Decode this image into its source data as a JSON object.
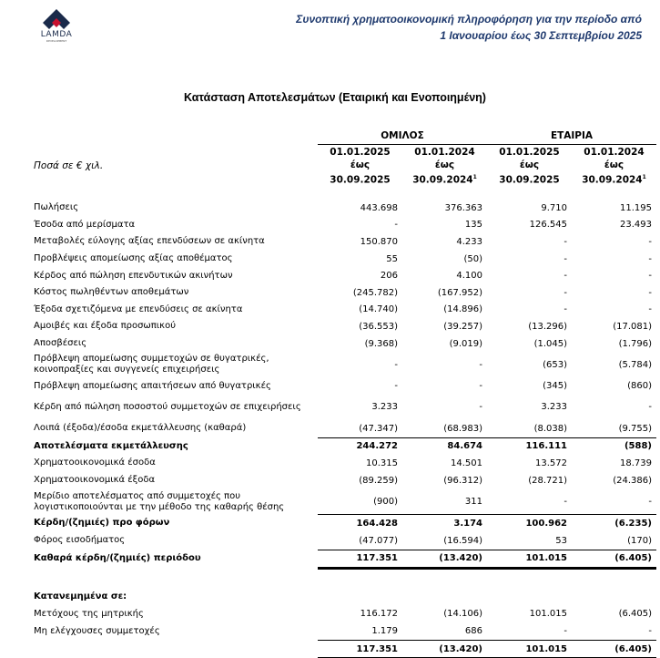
{
  "logo": {
    "name": "LAMDA",
    "sub": "DEVELOPMENT"
  },
  "header": {
    "line1": "Συνοπτική χρηματοοικονομική πληροφόρηση για την περίοδο από",
    "line2": "1 Ιανουαρίου έως 30 Σεπτεμβρίου 2025"
  },
  "title": "Κατάσταση Αποτελεσμάτων (Εταιρική και Ενοποιημένη)",
  "table": {
    "unit_label": "Ποσά σε € χιλ.",
    "groups": [
      "ΟΜΙΛΟΣ",
      "ΕΤΑΙΡΙΑ"
    ],
    "columns": [
      {
        "from": "01.01.2025",
        "to_word": "έως",
        "to": "30.09.2025",
        "note": ""
      },
      {
        "from": "01.01.2024",
        "to_word": "έως",
        "to": "30.09.2024",
        "note": "1"
      },
      {
        "from": "01.01.2025",
        "to_word": "έως",
        "to": "30.09.2025",
        "note": ""
      },
      {
        "from": "01.01.2024",
        "to_word": "έως",
        "to": "30.09.2024",
        "note": "1"
      }
    ],
    "rows": [
      {
        "label": "Πωλήσεις",
        "values": [
          "443.698",
          "376.363",
          "9.710",
          "11.195"
        ]
      },
      {
        "label": "Έσοδα από μερίσματα",
        "values": [
          "-",
          "135",
          "126.545",
          "23.493"
        ]
      },
      {
        "label": "Μεταβολές εύλογης αξίας επενδύσεων σε ακίνητα",
        "values": [
          "150.870",
          "4.233",
          "-",
          "-"
        ]
      },
      {
        "label": "Προβλέψεις απομείωσης αξίας αποθέματος",
        "values": [
          "55",
          "(50)",
          "-",
          "-"
        ]
      },
      {
        "label": "Κέρδος από πώληση επενδυτικών ακινήτων",
        "values": [
          "206",
          "4.100",
          "-",
          "-"
        ]
      },
      {
        "label": "Κόστος πωληθέντων αποθεμάτων",
        "values": [
          "(245.782)",
          "(167.952)",
          "-",
          "-"
        ]
      },
      {
        "label": "Έξοδα σχετιζόμενα με επενδύσεις σε ακίνητα",
        "values": [
          "(14.740)",
          "(14.896)",
          "-",
          "-"
        ]
      },
      {
        "label": "Αμοιβές και έξοδα προσωπικού",
        "values": [
          "(36.553)",
          "(39.257)",
          "(13.296)",
          "(17.081)"
        ]
      },
      {
        "label": "Αποσβέσεις",
        "values": [
          "(9.368)",
          "(9.019)",
          "(1.045)",
          "(1.796)"
        ]
      },
      {
        "label": "Πρόβλεψη απομείωσης συμμετοχών σε θυγατρικές, κοινοπραξίες και συγγενείς επιχειρήσεις",
        "values": [
          "-",
          "-",
          "(653)",
          "(5.784)"
        ],
        "type": "two"
      },
      {
        "label": "Πρόβλεψη απομείωσης απαιτήσεων από θυγατρικές",
        "values": [
          "-",
          "-",
          "(345)",
          "(860)"
        ]
      },
      {
        "label": "Κέρδη από πώληση ποσοστού συμμετοχών σε επιχειρήσεις",
        "values": [
          "3.233",
          "-",
          "3.233",
          "-"
        ],
        "type": "two"
      },
      {
        "label": "Λοιπά (έξοδα)/έσοδα εκμετάλλευσης (καθαρά)",
        "values": [
          "(47.347)",
          "(68.983)",
          "(8.038)",
          "(9.755)"
        ]
      },
      {
        "label": "Αποτελέσματα εκμετάλλευσης",
        "values": [
          "244.272",
          "84.674",
          "116.111",
          "(588)"
        ],
        "type": "subtotal"
      },
      {
        "label": "Χρηματοοικονομικά έσοδα",
        "values": [
          "10.315",
          "14.501",
          "13.572",
          "18.739"
        ]
      },
      {
        "label": "Χρηματοοικονομικά έξοδα",
        "values": [
          "(89.259)",
          "(96.312)",
          "(28.721)",
          "(24.386)"
        ]
      },
      {
        "label": "Μερίδιο αποτελέσματος από συμμετοχές που λογιστικοποιούνται με την μέθοδο της καθαρής θέσης",
        "values": [
          "(900)",
          "311",
          "-",
          "-"
        ],
        "type": "two"
      },
      {
        "label": "Κέρδη/(ζημιές) προ φόρων",
        "values": [
          "164.428",
          "3.174",
          "100.962",
          "(6.235)"
        ],
        "type": "subtotal"
      },
      {
        "label": "Φόρος εισοδήματος",
        "values": [
          "(47.077)",
          "(16.594)",
          "53",
          "(170)"
        ]
      },
      {
        "label": "Καθαρά κέρδη/(ζημιές) περιόδου",
        "values": [
          "117.351",
          "(13.420)",
          "101.015",
          "(6.405)"
        ],
        "type": "total"
      },
      {
        "type": "gap"
      },
      {
        "label": "Κατανεμημένα σε:",
        "values": [
          "",
          "",
          "",
          ""
        ],
        "type": "heading"
      },
      {
        "label": "Μετόχους της μητρικής",
        "values": [
          "116.172",
          "(14.106)",
          "101.015",
          "(6.405)"
        ]
      },
      {
        "label": "Μη ελέγχουσες συμμετοχές",
        "values": [
          "1.179",
          "686",
          "-",
          "-"
        ]
      },
      {
        "label": "",
        "values": [
          "117.351",
          "(13.420)",
          "101.015",
          "(6.405)"
        ],
        "type": "final"
      }
    ]
  }
}
